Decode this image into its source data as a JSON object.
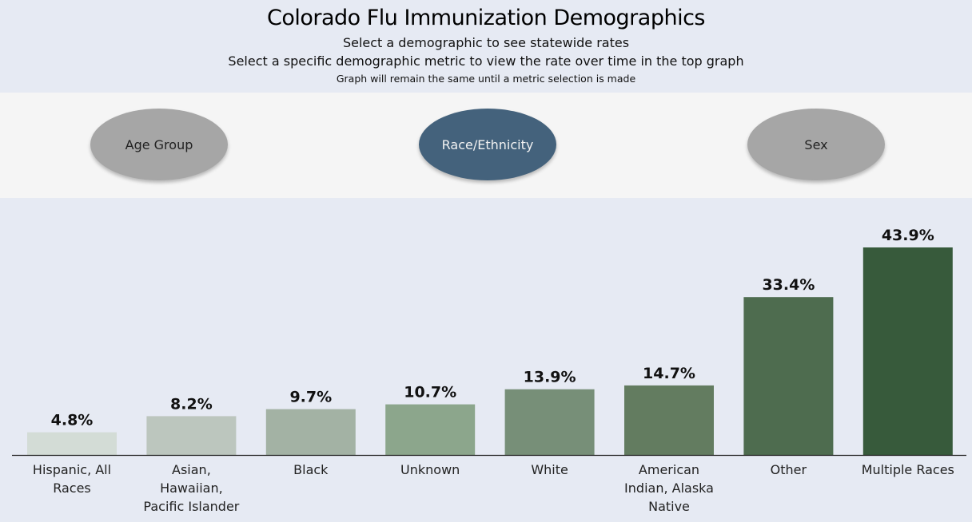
{
  "header": {
    "title": "Colorado Flu Immunization Demographics",
    "subtitle_1": "Select a demographic to see statewide rates",
    "subtitle_2": "Select a specific demographic metric to view the rate over time in the top graph",
    "subtitle_3": "Graph will remain the same until a metric selection is made"
  },
  "selectors": {
    "items": [
      {
        "label": "Age Group",
        "active": false
      },
      {
        "label": "Race/Ethnicity",
        "active": true
      },
      {
        "label": "Sex",
        "active": false
      }
    ],
    "active_color": "#44627c",
    "inactive_color": "#a6a6a6"
  },
  "chart_data": {
    "type": "bar",
    "title": "",
    "xlabel": "",
    "ylabel": "",
    "ylim": [
      0,
      43.9
    ],
    "grid": false,
    "categories": [
      [
        "Hispanic, All",
        "Races"
      ],
      [
        "Asian,",
        "Hawaiian,",
        "Pacific Islander"
      ],
      [
        "Black"
      ],
      [
        "Unknown"
      ],
      [
        "White"
      ],
      [
        "American",
        "Indian, Alaska",
        "Native"
      ],
      [
        "Other"
      ],
      [
        "Multiple Races"
      ]
    ],
    "values": [
      4.8,
      8.2,
      9.7,
      10.7,
      13.9,
      14.7,
      33.4,
      43.9
    ],
    "value_labels": [
      "4.8%",
      "8.2%",
      "9.7%",
      "10.7%",
      "13.9%",
      "14.7%",
      "33.4%",
      "43.9%"
    ],
    "colors": [
      "#d3dcd6",
      "#bcc6be",
      "#a3b2a4",
      "#8ca68c",
      "#778f78",
      "#637c60",
      "#4e6c4f",
      "#375a3b"
    ]
  }
}
